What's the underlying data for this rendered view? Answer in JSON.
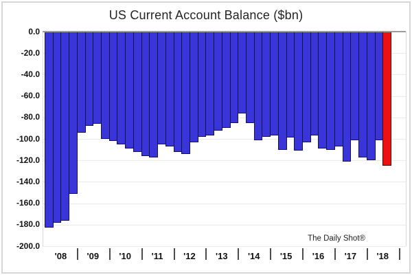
{
  "title": "US Current Account Balance ($bn)",
  "watermark": "The Daily Shot®",
  "chart_data": {
    "type": "bar",
    "title": "US Current Account Balance ($bn)",
    "ylabel": "",
    "xlabel": "",
    "ylim": [
      -200,
      0
    ],
    "grid": true,
    "y_tick_labels": [
      "0.0",
      "-20.0",
      "-40.0",
      "-60.0",
      "-80.0",
      "-100.0",
      "-120.0",
      "-140.0",
      "-160.0",
      "-180.0",
      "-200.0"
    ],
    "x_year_labels": [
      "'08",
      "'09",
      "'10",
      "'11",
      "'12",
      "'13",
      "'14",
      "'15",
      "'16",
      "'17",
      "'18"
    ],
    "categories": [
      "2008 Q1",
      "2008 Q2",
      "2008 Q3",
      "2008 Q4",
      "2009 Q1",
      "2009 Q2",
      "2009 Q3",
      "2009 Q4",
      "2010 Q1",
      "2010 Q2",
      "2010 Q3",
      "2010 Q4",
      "2011 Q1",
      "2011 Q2",
      "2011 Q3",
      "2011 Q4",
      "2012 Q1",
      "2012 Q2",
      "2012 Q3",
      "2012 Q4",
      "2013 Q1",
      "2013 Q2",
      "2013 Q3",
      "2013 Q4",
      "2014 Q1",
      "2014 Q2",
      "2014 Q3",
      "2014 Q4",
      "2015 Q1",
      "2015 Q2",
      "2015 Q3",
      "2015 Q4",
      "2016 Q1",
      "2016 Q2",
      "2016 Q3",
      "2016 Q4",
      "2017 Q1",
      "2017 Q2",
      "2017 Q3",
      "2017 Q4",
      "2018 Q1",
      "2018 Q2",
      "2018 Q3"
    ],
    "values": [
      -183,
      -178,
      -176,
      -151,
      -94,
      -88,
      -86,
      -100,
      -102,
      -105,
      -109,
      -112,
      -116,
      -117,
      -105,
      -107,
      -112,
      -114,
      -103,
      -98,
      -97,
      -92,
      -90,
      -85,
      -76,
      -85,
      -101,
      -98,
      -97,
      -110,
      -99,
      -111,
      -103,
      -97,
      -109,
      -110,
      -107,
      -121,
      -101,
      -117,
      -120,
      -101,
      -125
    ],
    "highlight_index": 42,
    "slots_per_year": 4,
    "total_slots": 44,
    "colors": {
      "bar": "#3a35d8",
      "bar_border": "#14124a",
      "highlight": "#ee1111",
      "highlight_border": "#4d0000",
      "grid": "#e9e9e9",
      "zero_line": "#9b9b9b",
      "text": "#111111"
    },
    "legend": null
  }
}
